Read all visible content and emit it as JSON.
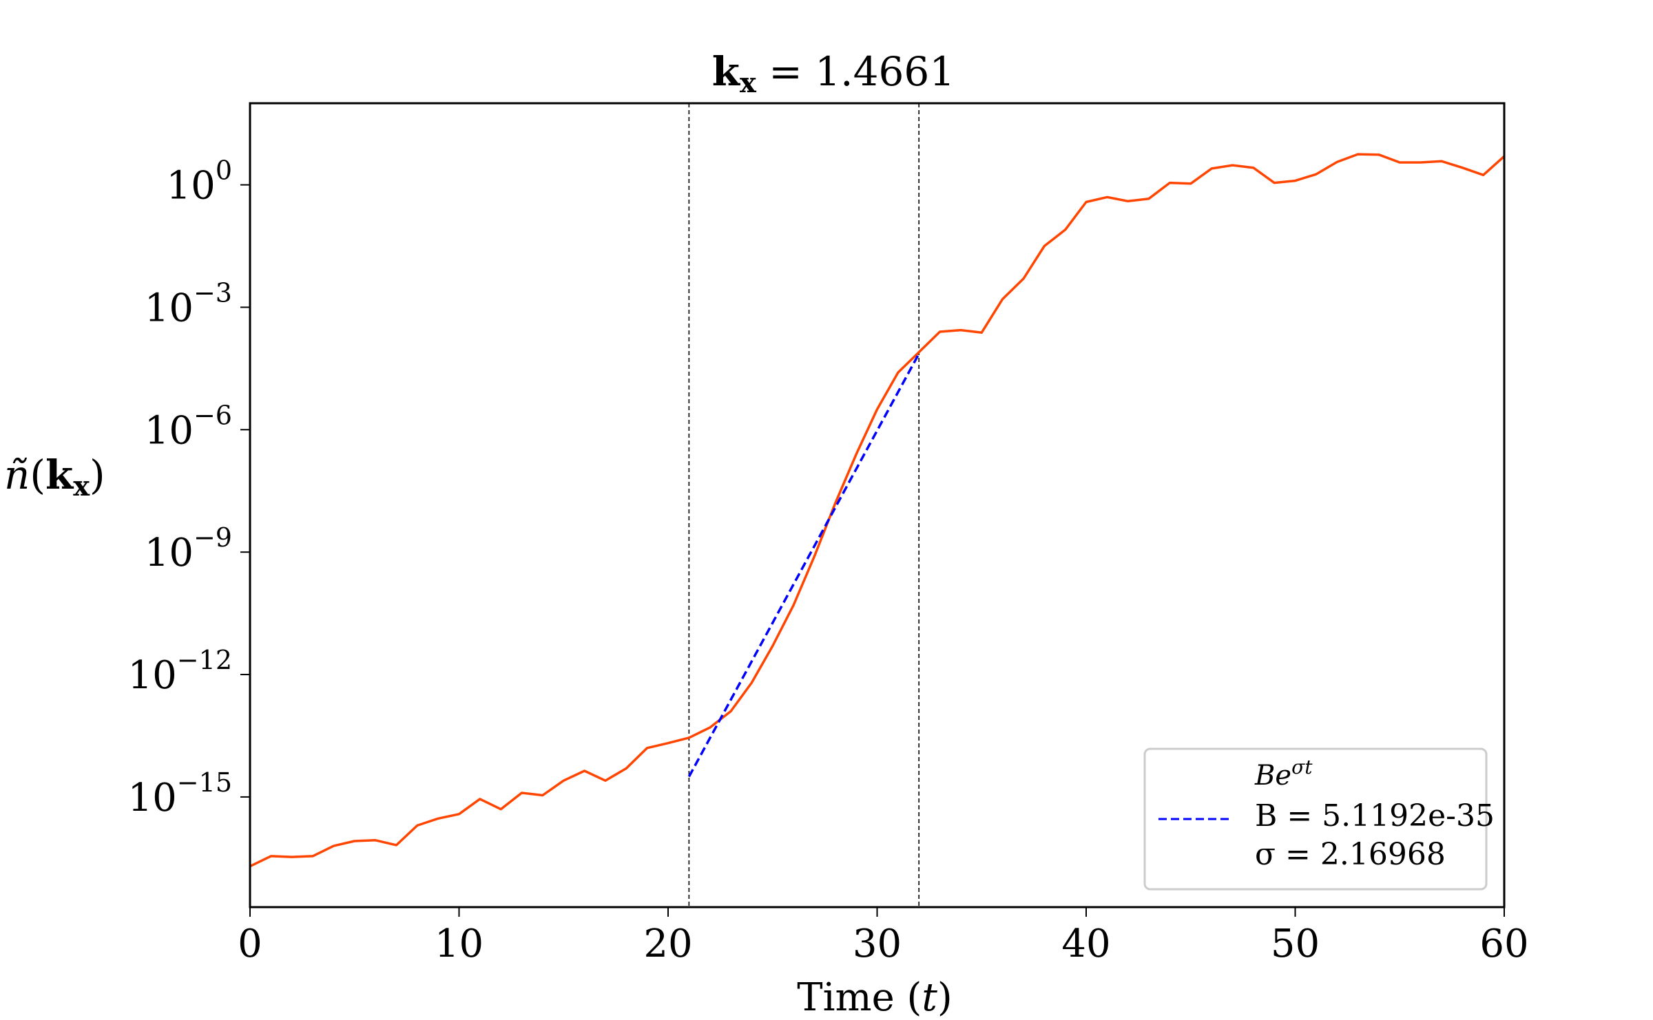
{
  "chart_data": {
    "type": "line",
    "title_main": "k",
    "title_sub": "x",
    "title_rest": " = 1.4661",
    "xlabel_pre": "Time (",
    "xlabel_var": "t",
    "xlabel_post": ")",
    "ylabel_var": "ñ",
    "ylabel_open": "(",
    "ylabel_bold": "k",
    "ylabel_sub": "x",
    "ylabel_close": ")",
    "xlim": [
      0,
      60
    ],
    "ylog_lim": [
      -17.7,
      2.0
    ],
    "yscale": "log",
    "grid": false,
    "legend_position": "lower-right",
    "x_ticks": [
      {
        "value": 0,
        "label": "0"
      },
      {
        "value": 10,
        "label": "10"
      },
      {
        "value": 20,
        "label": "20"
      },
      {
        "value": 30,
        "label": "30"
      },
      {
        "value": 40,
        "label": "40"
      },
      {
        "value": 50,
        "label": "50"
      },
      {
        "value": 60,
        "label": "60"
      }
    ],
    "y_ticks": [
      {
        "log": 0,
        "base": "10",
        "exp": "0"
      },
      {
        "log": -3,
        "base": "10",
        "exp": "−3"
      },
      {
        "log": -6,
        "base": "10",
        "exp": "−6"
      },
      {
        "log": -9,
        "base": "10",
        "exp": "−9"
      },
      {
        "log": -12,
        "base": "10",
        "exp": "−12"
      },
      {
        "log": -15,
        "base": "10",
        "exp": "−15"
      }
    ],
    "vlines": [
      21,
      32
    ],
    "series": [
      {
        "color": "#ff4500",
        "x": [
          0,
          1,
          2,
          3,
          4,
          5,
          6,
          7,
          8,
          9,
          10,
          11,
          12,
          13,
          14,
          15,
          16,
          17,
          18,
          19,
          20,
          21,
          22,
          23,
          24,
          25,
          26,
          27,
          28,
          29,
          30,
          31,
          32,
          33,
          34,
          35,
          36,
          37,
          38,
          39,
          40,
          41,
          42,
          43,
          44,
          45,
          46,
          47,
          48,
          49,
          50,
          51,
          52,
          53,
          54,
          55,
          56,
          57,
          58,
          59,
          60
        ],
        "log10_y": [
          -16.7,
          -16.45,
          -16.47,
          -16.45,
          -16.2,
          -16.08,
          -16.06,
          -16.18,
          -15.7,
          -15.53,
          -15.42,
          -15.05,
          -15.3,
          -14.9,
          -14.96,
          -14.6,
          -14.36,
          -14.6,
          -14.3,
          -13.8,
          -13.68,
          -13.55,
          -13.3,
          -12.9,
          -12.2,
          -11.3,
          -10.3,
          -9.1,
          -7.8,
          -6.6,
          -5.5,
          -4.6,
          -4.1,
          -3.6,
          -3.56,
          -3.62,
          -2.8,
          -2.3,
          -1.5,
          -1.1,
          -0.42,
          -0.3,
          -0.4,
          -0.34,
          0.05,
          0.03,
          0.4,
          0.48,
          0.42,
          0.05,
          0.1,
          0.26,
          0.56,
          0.75,
          0.74,
          0.55,
          0.55,
          0.58,
          0.42,
          0.24,
          0.7
        ]
      }
    ],
    "fit": {
      "color": "#0000ff",
      "B": 5.1192e-35,
      "sigma": 2.16968,
      "x_range": [
        21,
        32
      ]
    },
    "legend": {
      "line1_pre": "Be",
      "line1_exp": "σt",
      "line2": "B = 5.1192e-35",
      "line3": "σ = 2.16968"
    }
  }
}
